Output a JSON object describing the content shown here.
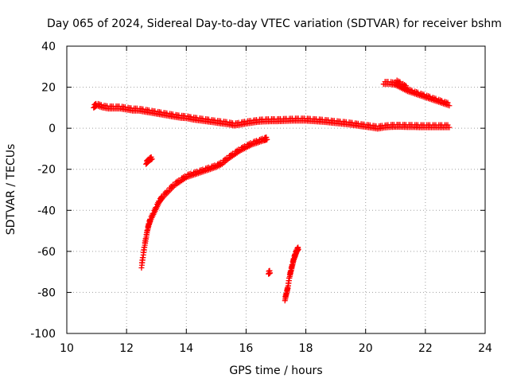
{
  "chart_data": {
    "type": "scatter",
    "title": "Day 065 of 2024, Sidereal Day-to-day VTEC variation (SDTVAR) for receiver bshm",
    "xlabel": "GPS time / hours",
    "ylabel": "SDTVAR / TECUs",
    "xlim": [
      10,
      24
    ],
    "ylim": [
      -100,
      40
    ],
    "xticks": [
      10,
      12,
      14,
      16,
      18,
      20,
      22,
      24
    ],
    "yticks": [
      -100,
      -80,
      -60,
      -40,
      -20,
      0,
      20,
      40
    ],
    "grid": true,
    "legend": "none",
    "marker": "plus",
    "color": "#ff0000",
    "series": [
      {
        "points": [
          [
            10.9,
            10
          ],
          [
            11.0,
            11
          ],
          [
            11.2,
            10
          ],
          [
            11.4,
            9.5
          ],
          [
            11.6,
            9.5
          ],
          [
            11.8,
            9.5
          ],
          [
            12.0,
            9
          ],
          [
            12.2,
            8.5
          ],
          [
            12.4,
            8.5
          ],
          [
            12.6,
            8
          ],
          [
            12.8,
            7.5
          ],
          [
            13.0,
            7
          ],
          [
            13.2,
            6.5
          ],
          [
            13.4,
            6
          ],
          [
            13.6,
            5.5
          ],
          [
            13.8,
            5
          ],
          [
            14.0,
            4.8
          ],
          [
            14.2,
            4.2
          ],
          [
            14.4,
            3.8
          ],
          [
            14.6,
            3.4
          ],
          [
            14.8,
            3.0
          ],
          [
            15.0,
            2.6
          ],
          [
            15.2,
            2.2
          ],
          [
            15.4,
            1.8
          ],
          [
            15.6,
            1.2
          ],
          [
            15.8,
            1.6
          ],
          [
            16.0,
            2.2
          ],
          [
            16.2,
            2.6
          ],
          [
            16.4,
            3.0
          ],
          [
            16.6,
            3.2
          ],
          [
            16.8,
            3.3
          ],
          [
            17.0,
            3.3
          ],
          [
            17.2,
            3.4
          ],
          [
            17.4,
            3.5
          ],
          [
            17.6,
            3.6
          ],
          [
            17.8,
            3.6
          ],
          [
            18.0,
            3.6
          ],
          [
            18.2,
            3.4
          ],
          [
            18.4,
            3.2
          ],
          [
            18.6,
            3.0
          ],
          [
            18.8,
            2.7
          ],
          [
            19.0,
            2.4
          ],
          [
            19.2,
            2.1
          ],
          [
            19.4,
            1.8
          ],
          [
            19.6,
            1.4
          ],
          [
            19.8,
            1.0
          ],
          [
            20.0,
            0.6
          ],
          [
            20.2,
            0.2
          ],
          [
            20.4,
            -0.3
          ],
          [
            20.6,
            0.2
          ],
          [
            20.8,
            0.5
          ],
          [
            21.0,
            0.6
          ],
          [
            21.2,
            0.6
          ],
          [
            21.4,
            0.5
          ],
          [
            21.6,
            0.5
          ],
          [
            21.8,
            0.4
          ],
          [
            22.0,
            0.4
          ],
          [
            22.2,
            0.4
          ],
          [
            22.4,
            0.4
          ],
          [
            22.6,
            0.4
          ],
          [
            22.8,
            0.4
          ]
        ]
      },
      {
        "points": [
          [
            20.6,
            21.5
          ],
          [
            20.8,
            21.5
          ],
          [
            21.0,
            21
          ],
          [
            21.2,
            19.5
          ],
          [
            21.4,
            18
          ],
          [
            21.6,
            17
          ],
          [
            21.8,
            16
          ],
          [
            22.0,
            15
          ],
          [
            22.2,
            14
          ],
          [
            22.4,
            13
          ],
          [
            22.6,
            12
          ],
          [
            22.8,
            11
          ],
          [
            21.0,
            22.5
          ],
          [
            21.2,
            21
          ],
          [
            21.4,
            19
          ]
        ]
      },
      {
        "points": [
          [
            12.5,
            -68
          ],
          [
            12.55,
            -63
          ],
          [
            12.6,
            -58
          ],
          [
            12.65,
            -54
          ],
          [
            12.7,
            -50
          ],
          [
            12.75,
            -47
          ],
          [
            12.8,
            -45
          ],
          [
            12.9,
            -42
          ],
          [
            13.0,
            -39
          ],
          [
            13.1,
            -36
          ],
          [
            13.2,
            -34
          ],
          [
            13.4,
            -31
          ],
          [
            13.6,
            -28
          ],
          [
            13.8,
            -26
          ],
          [
            14.0,
            -24
          ],
          [
            14.2,
            -23
          ],
          [
            14.4,
            -22
          ],
          [
            14.6,
            -21
          ],
          [
            14.8,
            -20
          ],
          [
            15.0,
            -19
          ],
          [
            15.2,
            -17.5
          ],
          [
            15.4,
            -15
          ],
          [
            15.6,
            -13
          ],
          [
            15.8,
            -11
          ],
          [
            16.0,
            -9.5
          ],
          [
            16.2,
            -8
          ],
          [
            16.4,
            -7
          ],
          [
            16.6,
            -6
          ],
          [
            16.7,
            -5.5
          ]
        ]
      },
      {
        "points": [
          [
            12.65,
            -17.5
          ],
          [
            12.75,
            -16
          ],
          [
            12.85,
            -15
          ]
        ]
      },
      {
        "points": [
          [
            17.3,
            -84
          ],
          [
            17.35,
            -81
          ],
          [
            17.4,
            -78
          ],
          [
            17.45,
            -73
          ],
          [
            17.5,
            -70
          ],
          [
            17.55,
            -67
          ],
          [
            17.6,
            -64
          ],
          [
            17.65,
            -62
          ],
          [
            17.7,
            -60
          ],
          [
            17.75,
            -59
          ]
        ]
      },
      {
        "points": [
          [
            16.75,
            -71
          ],
          [
            16.8,
            -70.5
          ]
        ]
      }
    ]
  }
}
